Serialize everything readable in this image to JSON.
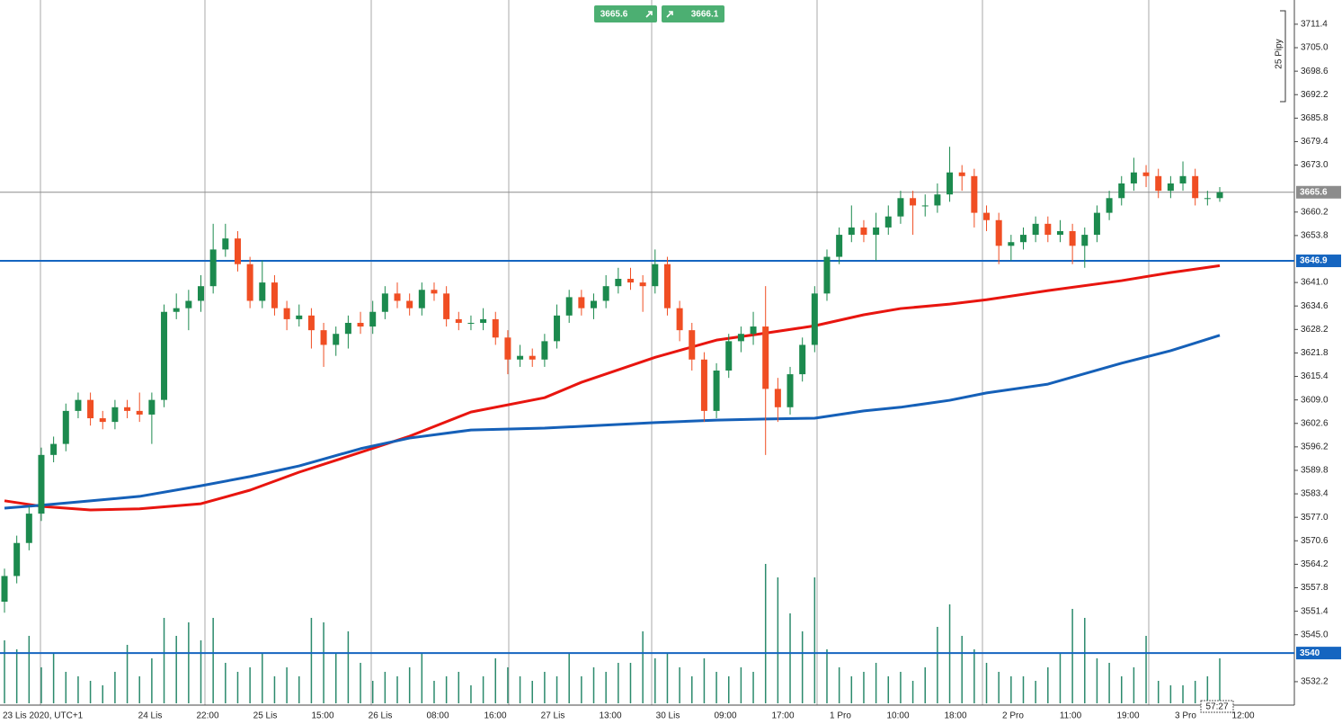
{
  "chart_data": {
    "type": "candlestick",
    "open": [
      3554,
      3561,
      3570,
      3578,
      3594,
      3597,
      3606,
      3609,
      3604,
      3603,
      3607,
      3606,
      3605,
      3609,
      3633,
      3634,
      3636,
      3640,
      3650,
      3653,
      3646,
      3636,
      3641,
      3634,
      3631,
      3632,
      3628,
      3624,
      3627,
      3630,
      3629,
      3633,
      3638,
      3636,
      3634,
      3639,
      3638,
      3631,
      3630,
      3630,
      3631,
      3626,
      3620,
      3621,
      3620,
      3625,
      3632,
      3637,
      3634,
      3636,
      3640,
      3642,
      3641,
      3640,
      3646,
      3634,
      3628,
      3620,
      3606,
      3617,
      3625,
      3627,
      3629,
      3612,
      3607,
      3616,
      3624,
      3638,
      3648,
      3654,
      3656,
      3654,
      3656,
      3659,
      3664,
      3662,
      3662,
      3665,
      3671,
      3670,
      3660,
      3658,
      3651,
      3652,
      3654,
      3657,
      3654,
      3655,
      3651,
      3654,
      3660,
      3664,
      3668,
      3671,
      3670,
      3666,
      3668,
      3670,
      3664,
      3664
    ],
    "high": [
      3563,
      3572,
      3580,
      3596,
      3599,
      3608,
      3611,
      3611,
      3606,
      3609,
      3609,
      3611,
      3611,
      3635,
      3638,
      3639,
      3643,
      3657,
      3657,
      3655,
      3648,
      3647,
      3643,
      3636,
      3635,
      3634,
      3630,
      3629,
      3632,
      3633,
      3636,
      3640,
      3641,
      3638,
      3641,
      3641,
      3640,
      3633,
      3632,
      3634,
      3633,
      3628,
      3624,
      3623,
      3627,
      3635,
      3639,
      3639,
      3638,
      3643,
      3645,
      3645,
      3643,
      3650,
      3648,
      3636,
      3630,
      3622,
      3619,
      3627,
      3629,
      3633,
      3640,
      3615,
      3618,
      3626,
      3640,
      3650,
      3656,
      3662,
      3658,
      3660,
      3662,
      3666,
      3666,
      3665,
      3668,
      3678,
      3673,
      3672,
      3662,
      3660,
      3654,
      3656,
      3659,
      3659,
      3658,
      3657,
      3656,
      3662,
      3666,
      3670,
      3675,
      3673,
      3672,
      3670,
      3674,
      3672,
      3666,
      3667
    ],
    "low": [
      3551,
      3559,
      3568,
      3576,
      3592,
      3595,
      3604,
      3602,
      3601,
      3601,
      3604,
      3603,
      3597,
      3607,
      3631,
      3628,
      3633,
      3638,
      3648,
      3644,
      3634,
      3634,
      3632,
      3628,
      3629,
      3623,
      3618,
      3621,
      3623,
      3627,
      3627,
      3631,
      3634,
      3632,
      3632,
      3636,
      3629,
      3628,
      3628,
      3628,
      3624,
      3616,
      3618,
      3618,
      3618,
      3623,
      3630,
      3632,
      3631,
      3634,
      3638,
      3639,
      3633,
      3638,
      3632,
      3625,
      3617,
      3603,
      3604,
      3615,
      3622,
      3624,
      3594,
      3603,
      3605,
      3614,
      3622,
      3636,
      3646,
      3652,
      3652,
      3647,
      3654,
      3657,
      3654,
      3659,
      3660,
      3663,
      3666,
      3656,
      3655,
      3646,
      3647,
      3650,
      3652,
      3652,
      3652,
      3646,
      3645,
      3652,
      3658,
      3662,
      3666,
      3667,
      3664,
      3664,
      3666,
      3662,
      3662,
      3663
    ],
    "close": [
      3561,
      3570,
      3578,
      3594,
      3597,
      3606,
      3609,
      3604,
      3603,
      3607,
      3606,
      3605,
      3609,
      3633,
      3634,
      3636,
      3640,
      3650,
      3653,
      3646,
      3636,
      3641,
      3634,
      3631,
      3632,
      3628,
      3624,
      3627,
      3630,
      3629,
      3633,
      3638,
      3636,
      3634,
      3639,
      3638,
      3631,
      3630,
      3630,
      3631,
      3626,
      3620,
      3621,
      3620,
      3625,
      3632,
      3637,
      3634,
      3636,
      3640,
      3642,
      3641,
      3640,
      3646,
      3634,
      3628,
      3620,
      3606,
      3617,
      3625,
      3627,
      3629,
      3612,
      3607,
      3616,
      3624,
      3638,
      3648,
      3654,
      3656,
      3654,
      3656,
      3659,
      3664,
      3662,
      3662,
      3665,
      3671,
      3670,
      3660,
      3658,
      3651,
      3652,
      3654,
      3657,
      3654,
      3655,
      3651,
      3654,
      3660,
      3664,
      3668,
      3671,
      3670,
      3666,
      3668,
      3670,
      3664,
      3664,
      3665.6
    ],
    "volume": [
      70,
      60,
      75,
      40,
      55,
      35,
      30,
      25,
      20,
      35,
      65,
      30,
      50,
      95,
      75,
      90,
      70,
      95,
      45,
      35,
      40,
      55,
      30,
      40,
      30,
      95,
      90,
      55,
      80,
      45,
      25,
      35,
      30,
      40,
      55,
      25,
      30,
      35,
      20,
      30,
      50,
      40,
      30,
      25,
      35,
      30,
      55,
      30,
      40,
      35,
      45,
      45,
      80,
      50,
      55,
      40,
      30,
      50,
      35,
      30,
      40,
      35,
      155,
      140,
      100,
      80,
      140,
      60,
      40,
      30,
      35,
      45,
      30,
      35,
      25,
      40,
      85,
      110,
      75,
      60,
      45,
      35,
      30,
      30,
      25,
      40,
      55,
      105,
      95,
      50,
      45,
      30,
      40,
      75,
      25,
      20,
      20,
      25,
      30,
      50
    ],
    "up_color": "#1c8a4e",
    "down_color": "#f04e23",
    "volume_color": "#2b8a6c",
    "ma_lines": [
      {
        "color": "#e8150f",
        "x": [
          0,
          3,
          7,
          11,
          16,
          20,
          24,
          29,
          33,
          38,
          44,
          47,
          53,
          58,
          62,
          66,
          70,
          73,
          77,
          80,
          85,
          91,
          95,
          99
        ],
        "values": [
          3581.5,
          3580.0,
          3579.0,
          3579.3,
          3580.7,
          3584.4,
          3589.3,
          3594.7,
          3599.1,
          3605.7,
          3609.6,
          3613.8,
          3620.6,
          3625.3,
          3627.2,
          3629.2,
          3632.2,
          3633.9,
          3635.1,
          3636.3,
          3638.8,
          3641.5,
          3643.7,
          3645.6
        ]
      },
      {
        "color": "#1560b8",
        "x": [
          0,
          3,
          7,
          11,
          16,
          20,
          24,
          29,
          33,
          38,
          44,
          47,
          53,
          58,
          62,
          66,
          70,
          73,
          77,
          80,
          85,
          91,
          95,
          99
        ],
        "values": [
          3579.5,
          3580.3,
          3581.5,
          3582.7,
          3585.6,
          3588.1,
          3591.0,
          3595.7,
          3598.6,
          3600.8,
          3601.3,
          3601.8,
          3602.8,
          3603.5,
          3603.8,
          3604.0,
          3606.0,
          3607.0,
          3608.9,
          3610.9,
          3613.3,
          3619.0,
          3622.4,
          3626.6
        ]
      }
    ],
    "ylim": [
      3526.3,
      3718.0
    ],
    "yticks": [
      3711.4,
      {
        "value": 3705,
        "label": "3705.0"
      },
      3698.6,
      3692.2,
      3685.8,
      3679.4,
      {
        "value": 3673,
        "label": "3673.0"
      },
      3660.2,
      3653.8,
      {
        "value": 3641,
        "label": "3641.0"
      },
      3634.6,
      3628.2,
      3621.8,
      3615.4,
      {
        "value": 3609,
        "label": "3609.0"
      },
      3602.6,
      3596.2,
      3589.8,
      3583.4,
      {
        "value": 3577,
        "label": "3577.0"
      },
      3570.6,
      3564.2,
      3557.8,
      3551.4,
      {
        "value": 3545,
        "label": "3545.0"
      },
      3532.2
    ],
    "x_labels": [
      "23 Lis 2020, UTC+1",
      "24 Lis",
      "22:00",
      "25 Lis",
      "15:00",
      "26 Lis",
      "08:00",
      "16:00",
      "27 Lis",
      "13:00",
      "30 Lis",
      "09:00",
      "17:00",
      "1 Pro",
      "10:00",
      "18:00",
      "2 Pro",
      "11:00",
      "19:00",
      "3 Pro",
      "12:00"
    ],
    "hlines": [
      {
        "value": 3646.9,
        "color": "#1565c0"
      },
      {
        "value": 3540,
        "color": "#1565c0"
      }
    ],
    "last_price": 3665.6,
    "buttons": [
      3665.6,
      3666.1
    ],
    "annotation": "25 Pipy",
    "timer": "57:27"
  }
}
